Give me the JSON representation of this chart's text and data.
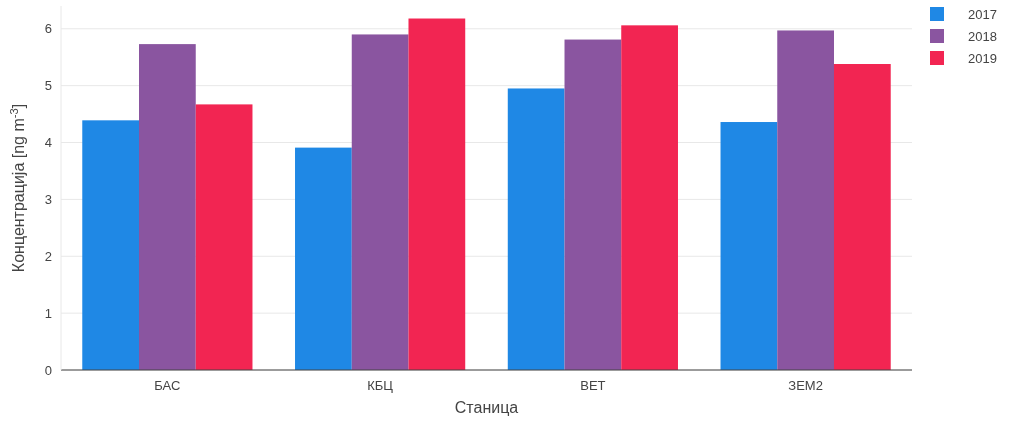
{
  "chart_data": {
    "type": "bar",
    "xlabel": "Станица",
    "ylabel": "Концентрација [ng m$^{-3}$]",
    "categories": [
      "БАС",
      "КБЦ",
      "ВЕТ",
      "ЗЕМ2"
    ],
    "series": [
      {
        "name": "2017",
        "color": "#1f88e5",
        "values": [
          4.39,
          3.91,
          4.95,
          4.36
        ]
      },
      {
        "name": "2018",
        "color": "#8a55a0",
        "values": [
          5.73,
          5.9,
          5.81,
          5.97
        ]
      },
      {
        "name": "2019",
        "color": "#f22552",
        "values": [
          4.67,
          6.18,
          6.06,
          5.38
        ]
      }
    ],
    "ylim": [
      0,
      6.4
    ],
    "yticks": [
      0,
      1,
      2,
      3,
      4,
      5,
      6
    ],
    "grid": "y",
    "legend": "top right"
  }
}
